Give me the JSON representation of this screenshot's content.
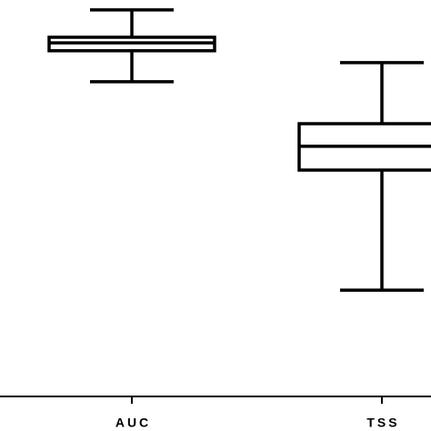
{
  "chart_data": {
    "type": "box",
    "categories": [
      "AUC",
      "TSS"
    ],
    "min": [
      0.794,
      0.268
    ],
    "q1": [
      0.872,
      0.571
    ],
    "median": [
      0.892,
      0.631
    ],
    "q3": [
      0.906,
      0.688
    ],
    "max": [
      0.975,
      0.842
    ],
    "ylim": [
      0,
      1
    ],
    "color": "#000000"
  }
}
